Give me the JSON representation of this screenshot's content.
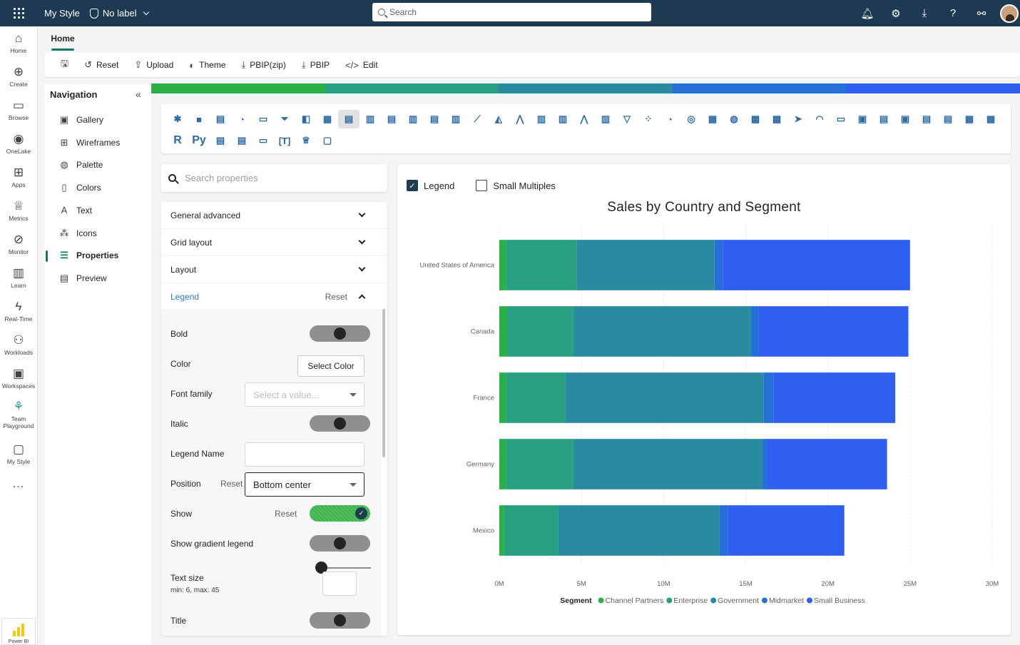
{
  "topbar": {
    "app_name": "My Style",
    "label": "No label",
    "search_placeholder": "Search",
    "icons": [
      "bell-icon",
      "gear-icon",
      "download-icon",
      "help-icon",
      "share-icon"
    ]
  },
  "rail": {
    "items": [
      {
        "label": "Home",
        "icon": "⌂"
      },
      {
        "label": "Create",
        "icon": "⊕"
      },
      {
        "label": "Browse",
        "icon": "▭"
      },
      {
        "label": "OneLake",
        "icon": "◉"
      },
      {
        "label": "Apps",
        "icon": "⊞"
      },
      {
        "label": "Metrics",
        "icon": "♕"
      },
      {
        "label": "Monitor",
        "icon": "⊘"
      },
      {
        "label": "Learn",
        "icon": "▥"
      },
      {
        "label": "Real-Time",
        "icon": "ϟ"
      },
      {
        "label": "Workloads",
        "icon": "⚇"
      },
      {
        "label": "Workspaces",
        "icon": "▣"
      },
      {
        "label": "Team Playground",
        "icon": "⚘"
      },
      {
        "label": "My Style",
        "icon": "▢"
      }
    ],
    "more": "...",
    "powerbi_label": "Power BI"
  },
  "home_tab": "Home",
  "ribbon": {
    "items": [
      {
        "label": "Reset",
        "icon": "↺"
      },
      {
        "label": "Upload",
        "icon": "⇪"
      },
      {
        "label": "Theme",
        "icon": "◐"
      },
      {
        "label": "PBIP(zip)",
        "icon": "⤓"
      },
      {
        "label": "PBIP",
        "icon": "⤓"
      },
      {
        "label": "Edit",
        "icon": "</>"
      }
    ]
  },
  "navigation": {
    "title": "Navigation",
    "items": [
      {
        "label": "Gallery",
        "icon": "▣"
      },
      {
        "label": "Wireframes",
        "icon": "⊞"
      },
      {
        "label": "Palette",
        "icon": "◍"
      },
      {
        "label": "Colors",
        "icon": "▯"
      },
      {
        "label": "Text",
        "icon": "A"
      },
      {
        "label": "Icons",
        "icon": "⁂"
      },
      {
        "label": "Properties",
        "icon": "☰"
      },
      {
        "label": "Preview",
        "icon": "▤"
      }
    ],
    "active": "Properties"
  },
  "colorbar": [
    "#2bb049",
    "#26a07e",
    "#2a8ba0",
    "#2470d8",
    "#2f5ff0"
  ],
  "visual_icons": {
    "row1": [
      "✱",
      "■",
      "▤",
      "◔",
      "▭",
      "⏷",
      "◧",
      "▦",
      "▤",
      "▥",
      "▤",
      "▥",
      "▤",
      "▥",
      "⟋",
      "◭",
      "⋀",
      "▥",
      "▥",
      "⋀",
      "▥",
      "▽",
      "⁘",
      "◔",
      "◎",
      "▦",
      "◍",
      "▩",
      "▩",
      "➤",
      "◠",
      "▭",
      "▣",
      "▤",
      "▣",
      "▤",
      "▤",
      "▦",
      "▦"
    ],
    "row2": [
      "R",
      "Py",
      "▤",
      "▤",
      "▭",
      "[T]",
      "♕",
      "▢"
    ],
    "selected_index": 8
  },
  "properties": {
    "search_placeholder": "Search properties",
    "sections": [
      "General advanced",
      "Grid layout",
      "Layout",
      "Legend"
    ],
    "legend_reset": "Reset",
    "bold_label": "Bold",
    "color_label": "Color",
    "select_color": "Select Color",
    "font_family_label": "Font family",
    "font_family_placeholder": "Select a value...",
    "italic_label": "Italic",
    "legend_name_label": "Legend Name",
    "position_label": "Position",
    "position_reset": "Reset",
    "position_value": "Bottom center",
    "show_label": "Show",
    "show_reset": "Reset",
    "show_gradient_label": "Show gradient legend",
    "text_size_label": "Text size",
    "text_size_hint": "min: 6, max: 45",
    "title_label": "Title"
  },
  "preview": {
    "legend_checkbox": "Legend",
    "small_multiples_checkbox": "Small Multiples"
  },
  "chart_data": {
    "type": "bar",
    "orientation": "horizontal",
    "stacked": true,
    "title": "Sales by Country and Segment",
    "categories": [
      "United States of America",
      "Canada",
      "France",
      "Germany",
      "Mexico"
    ],
    "xlim": [
      0,
      30000000
    ],
    "xticks": [
      0,
      5000000,
      10000000,
      15000000,
      20000000,
      25000000,
      30000000
    ],
    "xtick_labels": [
      "0M",
      "5M",
      "10M",
      "15M",
      "20M",
      "25M",
      "30M"
    ],
    "grid": true,
    "legend_title": "Segment",
    "legend_position": "bottom",
    "series": [
      {
        "name": "Channel Partners",
        "color": "#2bb049",
        "values": [
          400000,
          500000,
          400000,
          400000,
          300000
        ]
      },
      {
        "name": "Enterprise",
        "color": "#26a07e",
        "values": [
          4300000,
          4000000,
          3600000,
          4100000,
          3300000
        ]
      },
      {
        "name": "Government",
        "color": "#2a8ba0",
        "values": [
          8400000,
          10800000,
          12100000,
          11500000,
          9800000
        ]
      },
      {
        "name": "Midmarket",
        "color": "#2470d8",
        "values": [
          500000,
          500000,
          600000,
          300000,
          500000
        ]
      },
      {
        "name": "Small Business",
        "color": "#2f5ff0",
        "values": [
          11400000,
          9100000,
          7400000,
          7300000,
          7100000
        ]
      }
    ]
  }
}
